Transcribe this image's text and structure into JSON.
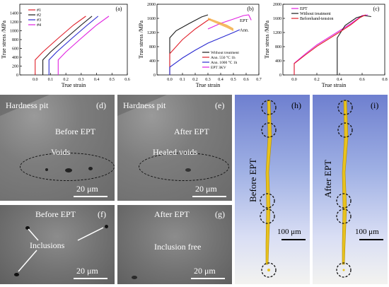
{
  "panel_a": {
    "tag": "(a)",
    "chart_data": {
      "type": "line",
      "xlabel": "True strain",
      "ylabel": "True stress /MPa",
      "xlim": [
        -0.1,
        0.6
      ],
      "ylim": [
        0,
        1600
      ],
      "xticks": [
        "0.0",
        "0.1",
        "0.2",
        "0.3",
        "0.4",
        "0.5",
        "0.6"
      ],
      "yticks": [
        "0",
        "200",
        "400",
        "600",
        "800",
        "1000",
        "1200",
        "1400"
      ],
      "legend_position": "top-left",
      "series": [
        {
          "name": "#1",
          "color": "#e0202a",
          "x": [
            0.0,
            0.0,
            0.05,
            0.15,
            0.25,
            0.33
          ],
          "y": [
            0,
            340,
            520,
            830,
            1130,
            1330
          ]
        },
        {
          "name": "#2",
          "color": "#1a1a1a",
          "x": [
            0.05,
            0.05,
            0.1,
            0.2,
            0.3,
            0.37
          ],
          "y": [
            0,
            340,
            520,
            830,
            1130,
            1330
          ]
        },
        {
          "name": "#3",
          "color": "#2a2ad0",
          "x": [
            0.09,
            0.09,
            0.14,
            0.24,
            0.34,
            0.41
          ],
          "y": [
            0,
            340,
            520,
            830,
            1130,
            1330
          ]
        },
        {
          "name": "#4",
          "color": "#e020e0",
          "x": [
            0.15,
            0.15,
            0.2,
            0.3,
            0.4,
            0.48
          ],
          "y": [
            0,
            340,
            520,
            830,
            1130,
            1330
          ]
        }
      ]
    }
  },
  "panel_b": {
    "tag": "(b)",
    "chart_data": {
      "type": "line",
      "xlabel": "True strain",
      "ylabel": "True stress /MPa",
      "xlim": [
        -0.1,
        0.7
      ],
      "ylim": [
        0,
        2000
      ],
      "xticks": [
        "0.0",
        "0.1",
        "0.2",
        "0.3",
        "0.4",
        "0.5",
        "0.6",
        "0.7"
      ],
      "yticks": [
        "0",
        "400",
        "800",
        "1200",
        "1600",
        "2000"
      ],
      "legend_position": "bottom-right",
      "annotations": [
        "EPT",
        "Ann."
      ],
      "series": [
        {
          "name": "Without treatment",
          "color": "#1a1a1a",
          "x": [
            0.0,
            0.0,
            0.05,
            0.15,
            0.25,
            0.3
          ],
          "y": [
            0,
            1050,
            1250,
            1450,
            1640,
            1700
          ]
        },
        {
          "name": "Ann. 550 °C 1h",
          "color": "#e0202a",
          "x": [
            0.0,
            0.0,
            0.1,
            0.2,
            0.3,
            0.32
          ],
          "y": [
            0,
            600,
            1000,
            1300,
            1550,
            1580
          ]
        },
        {
          "name": "Ann. 1000 °C 1h",
          "color": "#2a2ad0",
          "x": [
            0.0,
            0.0,
            0.1,
            0.2,
            0.3,
            0.4,
            0.5,
            0.55
          ],
          "y": [
            0,
            220,
            480,
            700,
            900,
            1050,
            1200,
            1280
          ]
        },
        {
          "name": "EPT 3KV",
          "color": "#e020e0",
          "x": [
            0.3,
            0.35,
            0.4,
            0.5,
            0.58,
            0.62,
            0.64
          ],
          "y": [
            1300,
            1380,
            1460,
            1580,
            1680,
            1700,
            1550
          ]
        }
      ]
    }
  },
  "panel_c": {
    "tag": "(c)",
    "chart_data": {
      "type": "line",
      "xlabel": "True strain",
      "ylabel": "True stress /MPa",
      "xlim": [
        -0.1,
        0.8
      ],
      "ylim": [
        0,
        2000
      ],
      "xticks": [
        "0.0",
        "0.2",
        "0.4",
        "0.6",
        "0.8"
      ],
      "yticks": [
        "0",
        "400",
        "800",
        "1200",
        "1600",
        "2000"
      ],
      "legend_position": "top-left",
      "series": [
        {
          "name": "EPT",
          "color": "#e020e0",
          "x": [
            0.0,
            0.0,
            0.1,
            0.2,
            0.3,
            0.4,
            0.5,
            0.6,
            0.65
          ],
          "y": [
            0,
            330,
            600,
            850,
            1050,
            1250,
            1450,
            1680,
            1700
          ]
        },
        {
          "name": "Without treatment",
          "color": "#1a1a1a",
          "x": [
            0.38,
            0.38,
            0.45,
            0.55,
            0.62,
            0.68
          ],
          "y": [
            0,
            1050,
            1400,
            1620,
            1680,
            1650
          ]
        },
        {
          "name": "Beforehand-tension",
          "color": "#e0202a",
          "x": [
            0.0,
            0.0,
            0.1,
            0.2,
            0.3,
            0.4,
            0.5,
            0.58,
            0.63
          ],
          "y": [
            0,
            320,
            570,
            810,
            1010,
            1210,
            1420,
            1620,
            1700
          ]
        }
      ]
    }
  },
  "panel_d": {
    "tag": "(d)",
    "title": "Hardness pit",
    "state": "Before  EPT",
    "feature": "Voids",
    "scale": "20 μm"
  },
  "panel_e": {
    "tag": "(e)",
    "title": "Hardness pit",
    "state": "After  EPT",
    "feature": "Healed voids",
    "scale": "20 μm"
  },
  "panel_f": {
    "tag": "(f)",
    "state": "Before  EPT",
    "feature": "Inclusions",
    "scale": "20 μm"
  },
  "panel_g": {
    "tag": "(g)",
    "state": "After  EPT",
    "feature": "Inclusion free",
    "scale": "20 μm"
  },
  "panel_h": {
    "tag": "(h)",
    "label": "Before EPT",
    "scale": "100 μm"
  },
  "panel_i": {
    "tag": "(i)",
    "label": "After EPT",
    "scale": "100 μm"
  }
}
